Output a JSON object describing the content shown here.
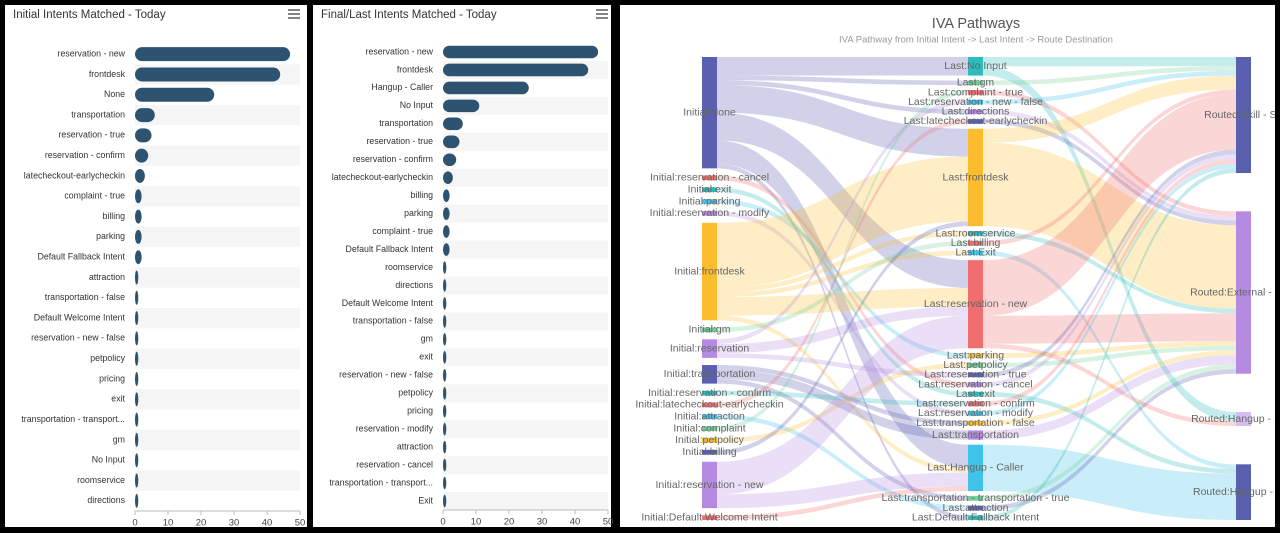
{
  "chart_data": [
    {
      "type": "bar",
      "orientation": "horizontal",
      "title": "Initial Intents Matched - Today",
      "color": "#2e5370",
      "categories": [
        "reservation - new",
        "frontdesk",
        "None",
        "transportation",
        "reservation - true",
        "reservation - confirm",
        "latecheckout-earlycheckin",
        "complaint - true",
        "billing",
        "parking",
        "Default Fallback Intent",
        "attraction",
        "transportation - false",
        "Default Welcome Intent",
        "reservation - new - false",
        "petpolicy",
        "pricing",
        "exit",
        "transportation - transport...",
        "gm",
        "No Input",
        "roomservice",
        "directions"
      ],
      "values": [
        47,
        44,
        24,
        6,
        5,
        4,
        3,
        2,
        2,
        2,
        2,
        1,
        1,
        1,
        1,
        1,
        1,
        1,
        1,
        1,
        1,
        1,
        1
      ],
      "xlim": [
        0,
        50
      ],
      "xticks": [
        0,
        10,
        20,
        30,
        40,
        50
      ]
    },
    {
      "type": "bar",
      "orientation": "horizontal",
      "title": "Final/Last Intents Matched - Today",
      "color": "#2e5370",
      "categories": [
        "reservation - new",
        "frontdesk",
        "Hangup - Caller",
        "No Input",
        "transportation",
        "reservation - true",
        "reservation - confirm",
        "latecheckout-earlycheckin",
        "billing",
        "parking",
        "complaint - true",
        "Default Fallback Intent",
        "roomservice",
        "directions",
        "Default Welcome Intent",
        "transportation - false",
        "gm",
        "exit",
        "reservation - new - false",
        "petpolicy",
        "pricing",
        "reservation - modify",
        "attraction",
        "reservation - cancel",
        "transportation - transport...",
        "Exit"
      ],
      "values": [
        47,
        44,
        26,
        11,
        6,
        5,
        4,
        3,
        2,
        2,
        2,
        2,
        1,
        1,
        1,
        1,
        1,
        1,
        1,
        1,
        1,
        1,
        1,
        1,
        1,
        1
      ],
      "xlim": [
        0,
        50
      ],
      "xticks": [
        0,
        10,
        20,
        30,
        40,
        50
      ]
    },
    {
      "type": "sankey",
      "title": "IVA Pathways",
      "subtitle": "IVA Pathway from Initial Intent -> Last Intent -> Route Destination",
      "nodes": [
        {
          "name": "Initial:None",
          "color": "#5a5fb0"
        },
        {
          "name": "Initial:reservation - cancel",
          "color": "#f26d6d"
        },
        {
          "name": "Initial:exit",
          "color": "#2cbcbc"
        },
        {
          "name": "Initial:parking",
          "color": "#3fc3e8"
        },
        {
          "name": "Initial:reservation - modify",
          "color": "#b48be0"
        },
        {
          "name": "Initial:frontdesk",
          "color": "#fbbd2d"
        },
        {
          "name": "Initial:gm",
          "color": "#6fcf97"
        },
        {
          "name": "Initial:reservation",
          "color": "#b48be0"
        },
        {
          "name": "Initial:transportation",
          "color": "#5a5fb0"
        },
        {
          "name": "Initial:reservation - confirm",
          "color": "#2cbcbc"
        },
        {
          "name": "Initial:latecheckout-earlycheckin",
          "color": "#f26d6d"
        },
        {
          "name": "Initial:attraction",
          "color": "#3fc3e8"
        },
        {
          "name": "Initial:complaint",
          "color": "#6fcf97"
        },
        {
          "name": "Initial:petpolicy",
          "color": "#fbbd2d"
        },
        {
          "name": "Initial:billing",
          "color": "#5a5fb0"
        },
        {
          "name": "Initial:reservation - new",
          "color": "#b48be0"
        },
        {
          "name": "Initial:Default Welcome Intent",
          "color": "#f26d6d"
        },
        {
          "name": "Last:No Input",
          "color": "#2cbcbc"
        },
        {
          "name": "Last:gm",
          "color": "#6fcf97"
        },
        {
          "name": "Last:complaint - true",
          "color": "#f26d6d"
        },
        {
          "name": "Last:reservation - new - false",
          "color": "#3fc3e8"
        },
        {
          "name": "Last:directions",
          "color": "#b48be0"
        },
        {
          "name": "Last:latecheckout-earlycheckin",
          "color": "#5a5fb0"
        },
        {
          "name": "Last:frontdesk",
          "color": "#fbbd2d"
        },
        {
          "name": "Last:roomservice",
          "color": "#2cbcbc"
        },
        {
          "name": "Last:billing",
          "color": "#f26d6d"
        },
        {
          "name": "Last:Exit",
          "color": "#3fc3e8"
        },
        {
          "name": "Last:reservation - new",
          "color": "#f26d6d"
        },
        {
          "name": "Last:parking",
          "color": "#fbbd2d"
        },
        {
          "name": "Last:petpolicy",
          "color": "#6fcf97"
        },
        {
          "name": "Last:reservation - true",
          "color": "#5a5fb0"
        },
        {
          "name": "Last:reservation - cancel",
          "color": "#b48be0"
        },
        {
          "name": "Last:exit",
          "color": "#2cbcbc"
        },
        {
          "name": "Last:reservation - confirm",
          "color": "#f26d6d"
        },
        {
          "name": "Last:reservation - modify",
          "color": "#3fc3e8"
        },
        {
          "name": "Last:transportation - false",
          "color": "#fbbd2d"
        },
        {
          "name": "Last:transportation",
          "color": "#b48be0"
        },
        {
          "name": "Last:Hangup - Caller",
          "color": "#3fc3e8"
        },
        {
          "name": "Last:transportation - transportation - true",
          "color": "#6fcf97"
        },
        {
          "name": "Last:attraction",
          "color": "#5a5fb0"
        },
        {
          "name": "Last:Default Fallback Intent",
          "color": "#2cbcbc"
        },
        {
          "name": "Routed:Skill - SF",
          "color": "#5a5fb0"
        },
        {
          "name": "Routed:External - Hote",
          "color": "#b48be0"
        },
        {
          "name": "Routed:Hangup - IVA -",
          "color": "#d4bdf0"
        },
        {
          "name": "Routed:Hangup - Call",
          "color": "#5a5fb0"
        }
      ],
      "links": [
        {
          "source": 0,
          "target": 17,
          "value": 4
        },
        {
          "source": 0,
          "target": 23,
          "value": 6
        },
        {
          "source": 0,
          "target": 27,
          "value": 6
        },
        {
          "source": 0,
          "target": 37,
          "value": 5
        },
        {
          "source": 0,
          "target": 21,
          "value": 1
        },
        {
          "source": 0,
          "target": 40,
          "value": 1
        },
        {
          "source": 0,
          "target": 18,
          "value": 1
        },
        {
          "source": 1,
          "target": 31,
          "value": 1
        },
        {
          "source": 2,
          "target": 32,
          "value": 1
        },
        {
          "source": 3,
          "target": 28,
          "value": 1
        },
        {
          "source": 4,
          "target": 34,
          "value": 1
        },
        {
          "source": 5,
          "target": 23,
          "value": 14
        },
        {
          "source": 5,
          "target": 27,
          "value": 4
        },
        {
          "source": 5,
          "target": 24,
          "value": 1
        },
        {
          "source": 5,
          "target": 26,
          "value": 1
        },
        {
          "source": 5,
          "target": 37,
          "value": 1
        },
        {
          "source": 6,
          "target": 25,
          "value": 1
        },
        {
          "source": 7,
          "target": 27,
          "value": 2
        },
        {
          "source": 7,
          "target": 30,
          "value": 1
        },
        {
          "source": 7,
          "target": 20,
          "value": 1
        },
        {
          "source": 8,
          "target": 36,
          "value": 2
        },
        {
          "source": 8,
          "target": 35,
          "value": 1
        },
        {
          "source": 8,
          "target": 38,
          "value": 1
        },
        {
          "source": 9,
          "target": 33,
          "value": 1
        },
        {
          "source": 10,
          "target": 22,
          "value": 1
        },
        {
          "source": 11,
          "target": 39,
          "value": 1
        },
        {
          "source": 12,
          "target": 19,
          "value": 1
        },
        {
          "source": 13,
          "target": 29,
          "value": 1
        },
        {
          "source": 14,
          "target": 23,
          "value": 1
        },
        {
          "source": 15,
          "target": 27,
          "value": 7
        },
        {
          "source": 15,
          "target": 37,
          "value": 3
        },
        {
          "source": 16,
          "target": 37,
          "value": 1
        },
        {
          "source": 17,
          "target": 41,
          "value": 2
        },
        {
          "source": 17,
          "target": 43,
          "value": 2
        },
        {
          "source": 18,
          "target": 41,
          "value": 1
        },
        {
          "source": 19,
          "target": 42,
          "value": 1
        },
        {
          "source": 20,
          "target": 41,
          "value": 1
        },
        {
          "source": 21,
          "target": 42,
          "value": 1
        },
        {
          "source": 22,
          "target": 42,
          "value": 1
        },
        {
          "source": 23,
          "target": 42,
          "value": 18
        },
        {
          "source": 23,
          "target": 41,
          "value": 3
        },
        {
          "source": 24,
          "target": 42,
          "value": 1
        },
        {
          "source": 25,
          "target": 41,
          "value": 1
        },
        {
          "source": 26,
          "target": 44,
          "value": 1
        },
        {
          "source": 27,
          "target": 41,
          "value": 12
        },
        {
          "source": 27,
          "target": 42,
          "value": 6
        },
        {
          "source": 27,
          "target": 43,
          "value": 1
        },
        {
          "source": 28,
          "target": 42,
          "value": 1
        },
        {
          "source": 29,
          "target": 42,
          "value": 1
        },
        {
          "source": 30,
          "target": 41,
          "value": 1
        },
        {
          "source": 31,
          "target": 41,
          "value": 1
        },
        {
          "source": 32,
          "target": 44,
          "value": 1
        },
        {
          "source": 33,
          "target": 41,
          "value": 1
        },
        {
          "source": 34,
          "target": 41,
          "value": 1
        },
        {
          "source": 35,
          "target": 42,
          "value": 1
        },
        {
          "source": 36,
          "target": 42,
          "value": 2
        },
        {
          "source": 37,
          "target": 44,
          "value": 10
        },
        {
          "source": 38,
          "target": 42,
          "value": 1
        },
        {
          "source": 39,
          "target": 42,
          "value": 1
        },
        {
          "source": 40,
          "target": 41,
          "value": 1
        }
      ]
    }
  ]
}
